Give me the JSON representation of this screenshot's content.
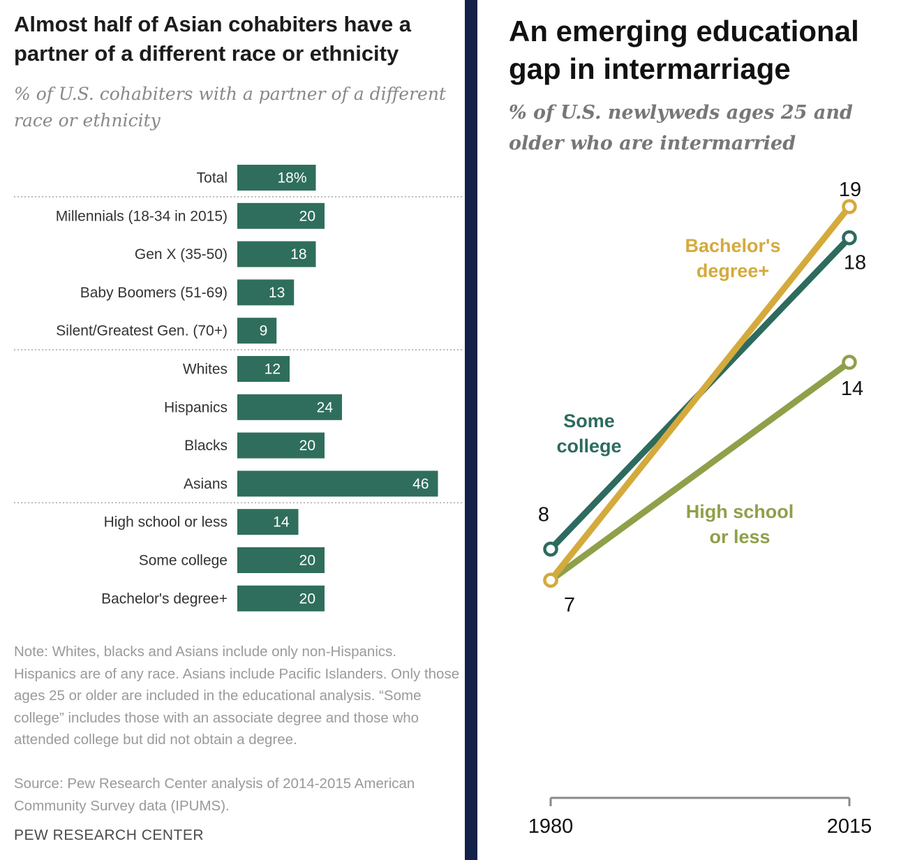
{
  "chart_data": [
    {
      "type": "bar",
      "orientation": "horizontal",
      "title": "Almost half of Asian cohabiters have a partner of a different race or ethnicity",
      "subtitle": "% of U.S. cohabiters with a partner of a different race or ethnicity",
      "categories": [
        "Total",
        "Millennials (18-34 in 2015)",
        "Gen X (35-50)",
        "Baby Boomers (51-69)",
        "Silent/Greatest Gen. (70+)",
        "Whites",
        "Hispanics",
        "Blacks",
        "Asians",
        "High school or less",
        "Some college",
        "Bachelor's degree+"
      ],
      "values": [
        18,
        20,
        18,
        13,
        9,
        12,
        24,
        20,
        46,
        14,
        20,
        20
      ],
      "value_labels": [
        "18%",
        "20",
        "18",
        "13",
        "9",
        "12",
        "24",
        "20",
        "46",
        "14",
        "20",
        "20"
      ],
      "group_breaks_after": [
        0,
        4,
        8
      ],
      "bar_color": "#2f6e5c",
      "xlim": [
        0,
        50
      ],
      "grid": false,
      "note": "Note: Whites, blacks and Asians include only non-Hispanics. Hispanics are of any race. Asians include Pacific Islanders. Only those ages 25 or older are included in the educational analysis. “Some college” includes those with an associate degree and those who attended college but did not obtain a degree.",
      "source": "Source: Pew Research Center analysis of 2014-2015 American Community Survey data (IPUMS).",
      "credit": "PEW RESEARCH CENTER"
    },
    {
      "type": "line",
      "title": "An emerging educational gap in intermarriage",
      "subtitle": "% of U.S. newlyweds ages 25 and older who are intermarried",
      "x": [
        1980,
        2015
      ],
      "x_tick_labels": [
        "1980",
        "2015"
      ],
      "ylim": [
        0,
        20
      ],
      "grid": false,
      "series": [
        {
          "name": "Some college",
          "label_lines": [
            "Some",
            "college"
          ],
          "values": [
            8,
            18
          ],
          "value_labels": [
            "8",
            "18"
          ],
          "color": "#2d6b5e"
        },
        {
          "name": "Bachelor's degree+",
          "label_lines": [
            "Bachelor's",
            "degree+"
          ],
          "values": [
            7,
            19
          ],
          "value_labels": [
            "7",
            "19"
          ],
          "color": "#d4aa3c"
        },
        {
          "name": "High school or less",
          "label_lines": [
            "High school",
            "or less"
          ],
          "values": [
            7,
            14
          ],
          "value_labels": [
            "",
            "14"
          ],
          "color": "#8fa04a"
        }
      ]
    }
  ]
}
